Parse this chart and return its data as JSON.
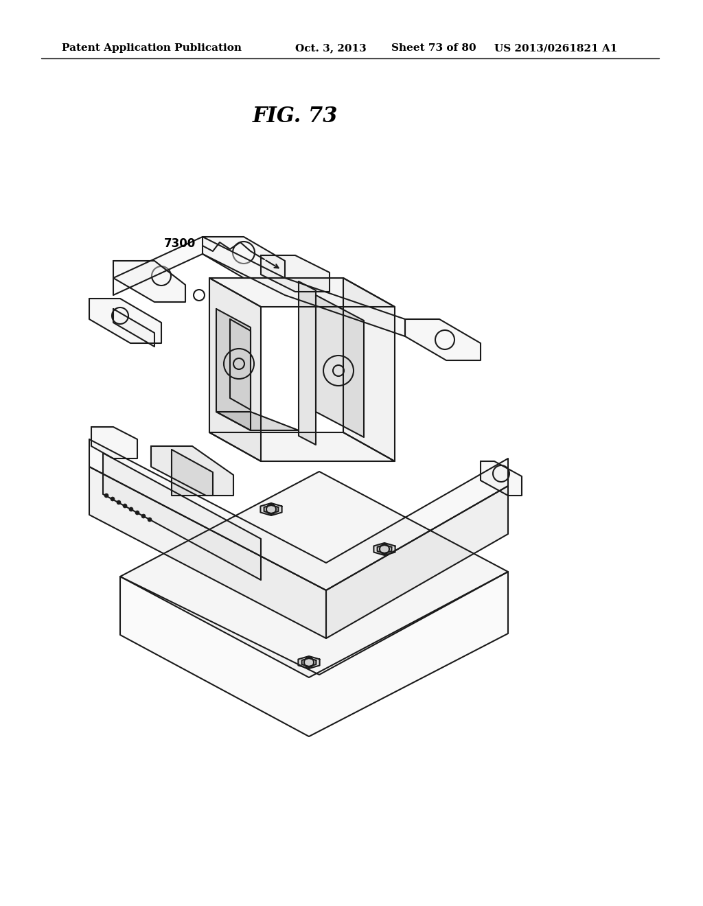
{
  "background_color": "#ffffff",
  "title": "FIG. 73",
  "header_left": "Patent Application Publication",
  "header_center": "Oct. 3, 2013   Sheet 73 of 80",
  "header_right": "US 2013/0261821 A1",
  "label": "7300",
  "line_color": "#1a1a1a",
  "line_width": 1.5,
  "fig_title_fontsize": 22,
  "header_fontsize": 11
}
